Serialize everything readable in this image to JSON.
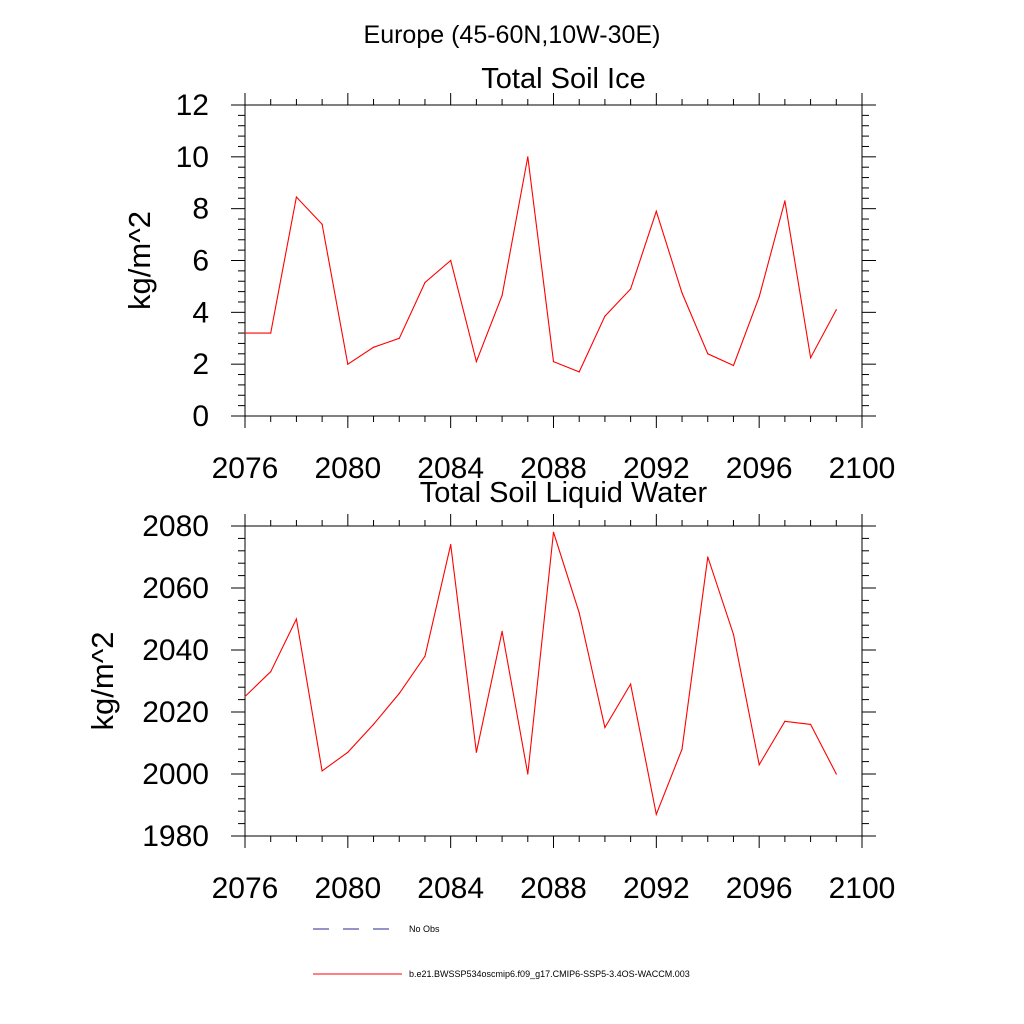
{
  "page_title": "Europe (45-60N,10W-30E)",
  "legend": {
    "placement": "bottom",
    "items": [
      {
        "label": "No Obs",
        "color": "#2a2a8c",
        "dash": true
      },
      {
        "label": "b.e21.BWSSP534oscmip6.f09_g17.CMIP6-SSP5-3.4OS-WACCM.003",
        "color": "#ff0000",
        "dash": false
      }
    ]
  },
  "chart_data": [
    {
      "type": "line",
      "title": "Total Soil Ice",
      "xlabel": "",
      "ylabel": "kg/m^2",
      "xlim": [
        2076,
        2100
      ],
      "ylim": [
        0,
        12
      ],
      "xticks": [
        2076,
        2080,
        2084,
        2088,
        2092,
        2096,
        2100
      ],
      "yticks": [
        0,
        2,
        4,
        6,
        8,
        10,
        12
      ],
      "grid": false,
      "x": [
        2076,
        2077,
        2078,
        2079,
        2080,
        2081,
        2082,
        2083,
        2084,
        2085,
        2086,
        2087,
        2088,
        2089,
        2090,
        2091,
        2092,
        2093,
        2094,
        2095,
        2096,
        2097,
        2098,
        2099
      ],
      "series": [
        {
          "name": "b.e21.BWSSP534oscmip6.f09_g17.CMIP6-SSP5-3.4OS-WACCM.003",
          "color": "#ff0000",
          "values": [
            3.2,
            3.2,
            8.45,
            7.4,
            2.0,
            2.65,
            3.0,
            5.15,
            6.0,
            2.1,
            4.65,
            10.0,
            2.1,
            1.7,
            3.85,
            4.9,
            7.9,
            4.75,
            2.4,
            1.95,
            4.6,
            8.3,
            2.25,
            4.1
          ]
        }
      ]
    },
    {
      "type": "line",
      "title": "Total Soil Liquid Water",
      "xlabel": "",
      "ylabel": "kg/m^2",
      "xlim": [
        2076,
        2100
      ],
      "ylim": [
        1980,
        2080
      ],
      "xticks": [
        2076,
        2080,
        2084,
        2088,
        2092,
        2096,
        2100
      ],
      "yticks": [
        1980,
        2000,
        2020,
        2040,
        2060,
        2080
      ],
      "grid": false,
      "x": [
        2076,
        2077,
        2078,
        2079,
        2080,
        2081,
        2082,
        2083,
        2084,
        2085,
        2086,
        2087,
        2088,
        2089,
        2090,
        2091,
        2092,
        2093,
        2094,
        2095,
        2096,
        2097,
        2098,
        2099
      ],
      "series": [
        {
          "name": "b.e21.BWSSP534oscmip6.f09_g17.CMIP6-SSP5-3.4OS-WACCM.003",
          "color": "#ff0000",
          "values": [
            2025,
            2033,
            2050,
            2001,
            2007,
            2016,
            2026,
            2038,
            2074,
            2007,
            2046,
            2000,
            2078,
            2052,
            2015,
            2029,
            1987,
            2008,
            2070,
            2045,
            2003,
            2017,
            2016,
            2000
          ]
        }
      ]
    }
  ]
}
